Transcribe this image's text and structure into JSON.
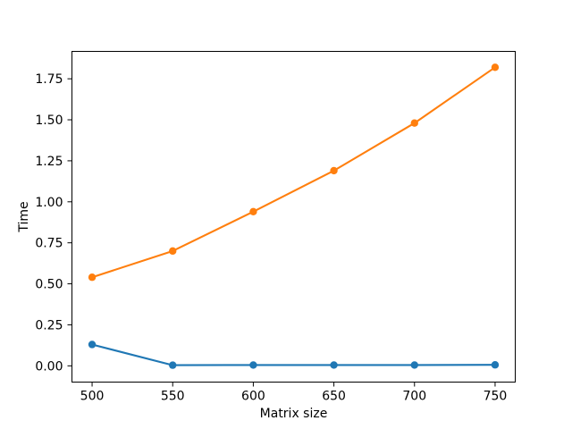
{
  "figure": {
    "background": "#ffffff",
    "axis_color": "#000000",
    "text_color": "#000000"
  },
  "chart_data": {
    "type": "line",
    "title": "",
    "xlabel": "Matrix size",
    "ylabel": "Time",
    "x": [
      500,
      550,
      600,
      650,
      700,
      750
    ],
    "series": [
      {
        "color": "#1f77b4",
        "marker": "circle",
        "values": [
          0.13,
          0.004,
          0.005,
          0.005,
          0.005,
          0.006
        ]
      },
      {
        "color": "#ff7f0e",
        "marker": "circle",
        "values": [
          0.54,
          0.7,
          0.94,
          1.19,
          1.48,
          1.82
        ]
      }
    ],
    "xticks": [
      "500",
      "550",
      "600",
      "650",
      "700",
      "750"
    ],
    "yticks": [
      "0.00",
      "0.25",
      "0.50",
      "0.75",
      "1.00",
      "1.25",
      "1.50",
      "1.75"
    ],
    "xlim": [
      487.5,
      762.5
    ],
    "ylim": [
      -0.099,
      1.917
    ],
    "grid": false,
    "legend": "none"
  }
}
